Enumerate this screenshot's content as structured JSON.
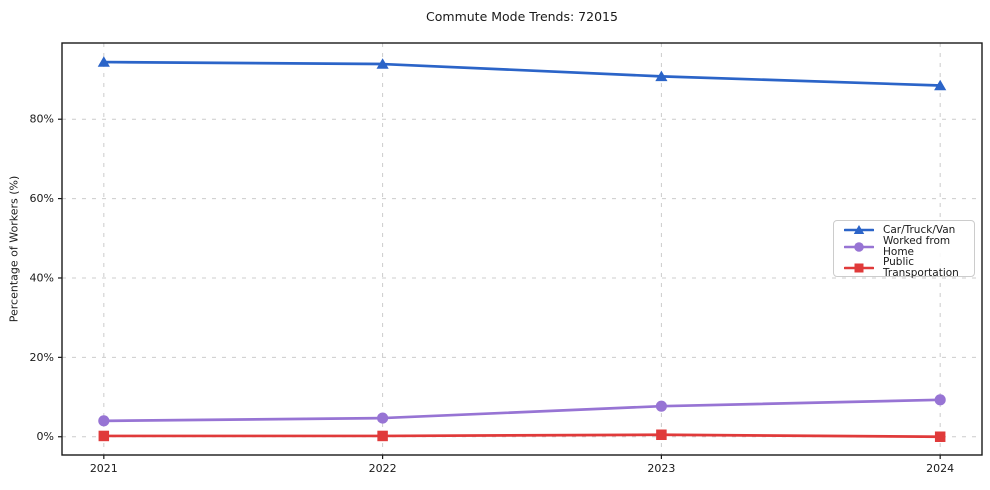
{
  "chart_data": {
    "type": "line",
    "title": "Commute Mode Trends: 72015",
    "xlabel": "",
    "ylabel": "Percentage of Workers (%)",
    "categories": [
      "2021",
      "2022",
      "2023",
      "2024"
    ],
    "x": [
      2021,
      2022,
      2023,
      2024
    ],
    "series": [
      {
        "name": "Car/Truck/Van",
        "color": "#2b64c8",
        "marker": "triangle",
        "values": [
          94.4,
          93.9,
          90.8,
          88.5
        ]
      },
      {
        "name": "Worked from Home",
        "color": "#9774d4",
        "marker": "circle",
        "values": [
          4.0,
          4.7,
          7.7,
          9.3
        ]
      },
      {
        "name": "Public Transportation",
        "color": "#e03a3a",
        "marker": "square",
        "values": [
          0.2,
          0.2,
          0.5,
          0.0
        ]
      }
    ],
    "yticks": [
      0,
      20,
      40,
      60,
      80
    ],
    "ytick_labels": [
      "0%",
      "20%",
      "40%",
      "60%",
      "80%"
    ],
    "ylim": [
      -4.6,
      99.2
    ],
    "xlim": [
      2020.85,
      2024.15
    ],
    "grid": true,
    "grid_style": "dashed",
    "legend_position": "center-right",
    "colors": {
      "grid": "#cccccc",
      "axis": "#1a1a1a",
      "text": "#1a1a1a",
      "background": "#ffffff"
    }
  }
}
